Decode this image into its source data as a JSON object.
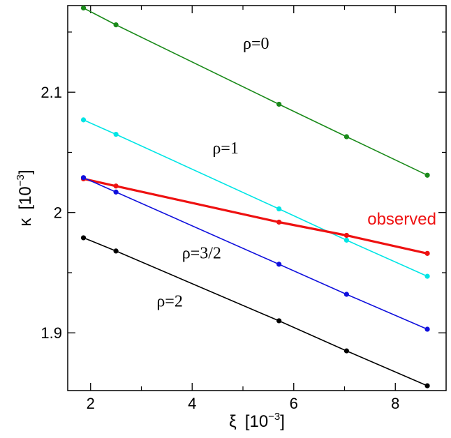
{
  "chart_data": {
    "type": "line",
    "title": "",
    "xlabel": {
      "symbol": "ξ",
      "unit_base": "[10",
      "unit_exp": "−3",
      "unit_close": "]"
    },
    "ylabel": {
      "symbol": "κ",
      "unit_base": "[10",
      "unit_exp": "−3",
      "unit_close": "]"
    },
    "xlim": [
      1.55,
      9.0
    ],
    "ylim": [
      1.852,
      2.172
    ],
    "x_ticks": [
      2,
      4,
      6,
      8
    ],
    "y_ticks": [
      1.9,
      2.0,
      2.1
    ],
    "x_tick_labels": [
      "2",
      "4",
      "6",
      "8"
    ],
    "y_tick_labels": [
      "1.9",
      "2",
      "2.1"
    ],
    "grid": false,
    "x": [
      1.86,
      2.5,
      5.71,
      7.04,
      8.63
    ],
    "series": [
      {
        "name": "ρ=0",
        "color": "#1a8a1a",
        "width": 1.6,
        "values": [
          2.17,
          2.156,
          2.09,
          2.063,
          2.031
        ]
      },
      {
        "name": "ρ=1",
        "color": "#00e5e5",
        "width": 1.6,
        "values": [
          2.077,
          2.065,
          2.003,
          1.977,
          1.947
        ]
      },
      {
        "name": "observed",
        "color": "#ee1111",
        "width": 3.2,
        "values": [
          2.028,
          2.022,
          1.992,
          1.981,
          1.966
        ]
      },
      {
        "name": "ρ=3/2",
        "color": "#1010dd",
        "width": 1.6,
        "values": [
          2.029,
          2.017,
          1.957,
          1.932,
          1.903
        ]
      },
      {
        "name": "ρ=2",
        "color": "#000000",
        "width": 1.6,
        "values": [
          1.979,
          1.968,
          1.91,
          1.885,
          1.856
        ]
      }
    ],
    "annotations": [
      {
        "text": "ρ=0",
        "x": 5.0,
        "y": 2.136,
        "color": "#000000"
      },
      {
        "text": "ρ=1",
        "x": 4.4,
        "y": 2.049,
        "color": "#000000"
      },
      {
        "text": "observed",
        "x": 7.45,
        "y": 1.99,
        "color": "#ee1111"
      },
      {
        "text": "ρ=3/2",
        "x": 3.8,
        "y": 1.962,
        "color": "#000000"
      },
      {
        "text": "ρ=2",
        "x": 3.3,
        "y": 1.922,
        "color": "#000000"
      }
    ]
  }
}
